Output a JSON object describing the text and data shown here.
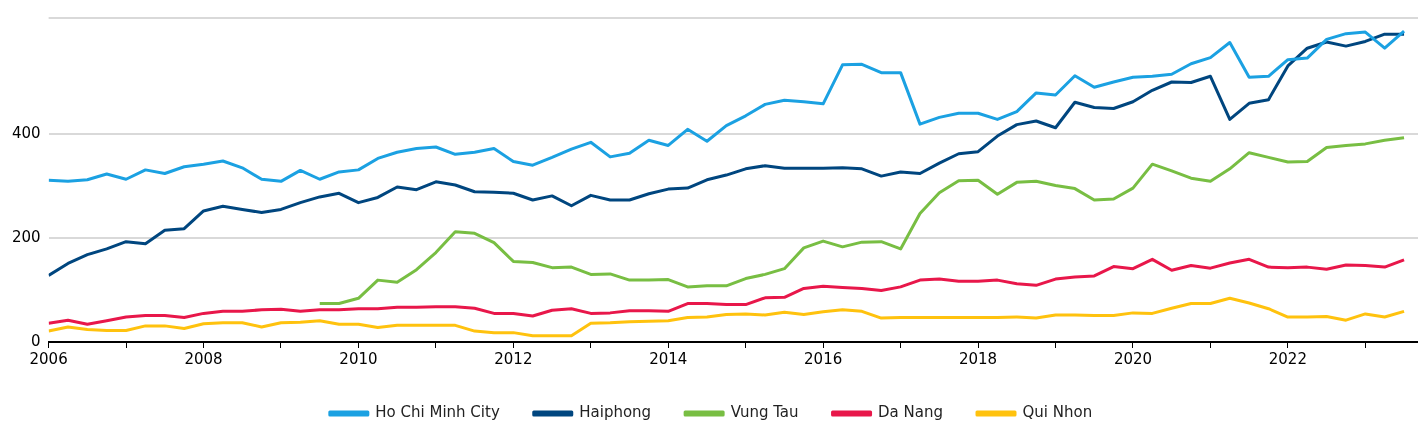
{
  "chart_data": {
    "type": "line",
    "x": [
      2006,
      2006.25,
      2006.5,
      2006.75,
      2007,
      2007.25,
      2007.5,
      2007.75,
      2008,
      2008.25,
      2008.5,
      2008.75,
      2009,
      2009.25,
      2009.5,
      2009.75,
      2010,
      2010.25,
      2010.5,
      2010.75,
      2011,
      2011.25,
      2011.5,
      2011.75,
      2012,
      2012.25,
      2012.5,
      2012.75,
      2013,
      2013.25,
      2013.5,
      2013.75,
      2014,
      2014.25,
      2014.5,
      2014.75,
      2015,
      2015.25,
      2015.5,
      2015.75,
      2016,
      2016.25,
      2016.5,
      2016.75,
      2017,
      2017.25,
      2017.5,
      2017.75,
      2018,
      2018.25,
      2018.5,
      2018.75,
      2019,
      2019.25,
      2019.5,
      2019.75,
      2020,
      2020.25,
      2020.5,
      2020.75,
      2021,
      2021.25,
      2021.5,
      2021.75,
      2022,
      2022.25,
      2022.5,
      2022.75,
      2023,
      2023.25,
      2023.5
    ],
    "series": [
      {
        "name": "Ho Chi Minh City",
        "color": "#1ba1e2",
        "values": [
          311,
          309,
          312,
          323,
          313,
          331,
          324,
          337,
          342,
          348,
          335,
          313,
          309,
          330,
          313,
          327,
          331,
          353,
          365,
          372,
          375,
          361,
          365,
          372,
          347,
          340,
          355,
          371,
          384,
          356,
          363,
          388,
          378,
          409,
          386,
          416,
          435,
          457,
          465,
          462,
          458,
          533,
          534,
          518,
          518,
          419,
          432,
          440,
          440,
          428,
          443,
          479,
          475,
          512,
          490,
          500,
          509,
          511,
          515,
          535,
          547,
          576,
          509,
          511,
          543,
          546,
          582,
          593,
          596,
          565,
          598
        ]
      },
      {
        "name": "Haiphong",
        "color": "#00467f",
        "values": [
          128,
          151,
          168,
          179,
          193,
          189,
          215,
          218,
          252,
          261,
          255,
          249,
          255,
          268,
          279,
          286,
          268,
          278,
          298,
          293,
          308,
          302,
          289,
          288,
          286,
          273,
          281,
          262,
          282,
          273,
          273,
          285,
          294,
          296,
          312,
          321,
          333,
          339,
          334,
          334,
          334,
          335,
          333,
          319,
          327,
          324,
          344,
          362,
          366,
          396,
          418,
          425,
          412,
          461,
          451,
          449,
          462,
          484,
          500,
          499,
          511,
          428,
          459,
          466,
          531,
          565,
          577,
          569,
          578,
          592,
          592
        ]
      },
      {
        "name": "Vung Tau",
        "color": "#78be43",
        "values": [
          null,
          null,
          null,
          null,
          null,
          null,
          null,
          null,
          null,
          null,
          null,
          null,
          null,
          null,
          74,
          74,
          84,
          119,
          115,
          139,
          172,
          212,
          209,
          191,
          155,
          153,
          143,
          144,
          130,
          131,
          119,
          119,
          120,
          106,
          108,
          108,
          122,
          130,
          141,
          181,
          194,
          183,
          192,
          193,
          179,
          247,
          287,
          310,
          311,
          284,
          307,
          309,
          301,
          295,
          273,
          275,
          296,
          342,
          329,
          315,
          309,
          333,
          364,
          355,
          346,
          347,
          374,
          378,
          381,
          388,
          393
        ]
      },
      {
        "name": "Da Nang",
        "color": "#e8174a",
        "values": [
          36,
          42,
          34,
          41,
          48,
          51,
          51,
          47,
          55,
          59,
          59,
          62,
          63,
          59,
          62,
          62,
          64,
          64,
          67,
          67,
          68,
          68,
          65,
          55,
          55,
          50,
          61,
          64,
          55,
          56,
          60,
          60,
          59,
          74,
          74,
          72,
          72,
          85,
          86,
          103,
          107,
          105,
          103,
          99,
          106,
          119,
          121,
          117,
          117,
          119,
          112,
          109,
          121,
          125,
          127,
          145,
          141,
          159,
          138,
          147,
          142,
          152,
          159,
          144,
          143,
          144,
          140,
          148,
          147,
          144,
          158
        ]
      },
      {
        "name": "Qui Nhon",
        "color": "#ffc20e",
        "values": [
          21,
          29,
          24,
          22,
          22,
          31,
          31,
          26,
          35,
          37,
          37,
          29,
          37,
          38,
          41,
          34,
          34,
          28,
          32,
          32,
          32,
          32,
          21,
          18,
          18,
          12,
          12,
          12,
          36,
          37,
          39,
          40,
          41,
          47,
          48,
          53,
          54,
          52,
          57,
          53,
          58,
          62,
          59,
          46,
          47,
          47,
          47,
          47,
          47,
          47,
          48,
          46,
          52,
          52,
          51,
          51,
          56,
          55,
          65,
          74,
          74,
          84,
          75,
          64,
          48,
          48,
          49,
          42,
          54,
          48,
          59
        ]
      }
    ],
    "xlim": [
      2006,
      2023.68
    ],
    "xticks": [
      2006,
      {
        "value": 2007,
        "label": null
      },
      2008,
      {
        "value": 2009,
        "label": null
      },
      2010,
      {
        "value": 2011,
        "label": null
      },
      2012,
      {
        "value": 2013,
        "label": null
      },
      2014,
      {
        "value": 2015,
        "label": null
      },
      2016,
      {
        "value": 2017,
        "label": null
      },
      2018,
      {
        "value": 2019,
        "label": null
      },
      2020,
      {
        "value": 2021,
        "label": null
      },
      2022,
      {
        "value": 2023,
        "label": null
      }
    ],
    "ylim": [
      0,
      625
    ],
    "yticks": [
      0,
      200,
      400
    ],
    "grid": "y",
    "legend": "bottom",
    "marker": "none",
    "line_style": "solid"
  }
}
